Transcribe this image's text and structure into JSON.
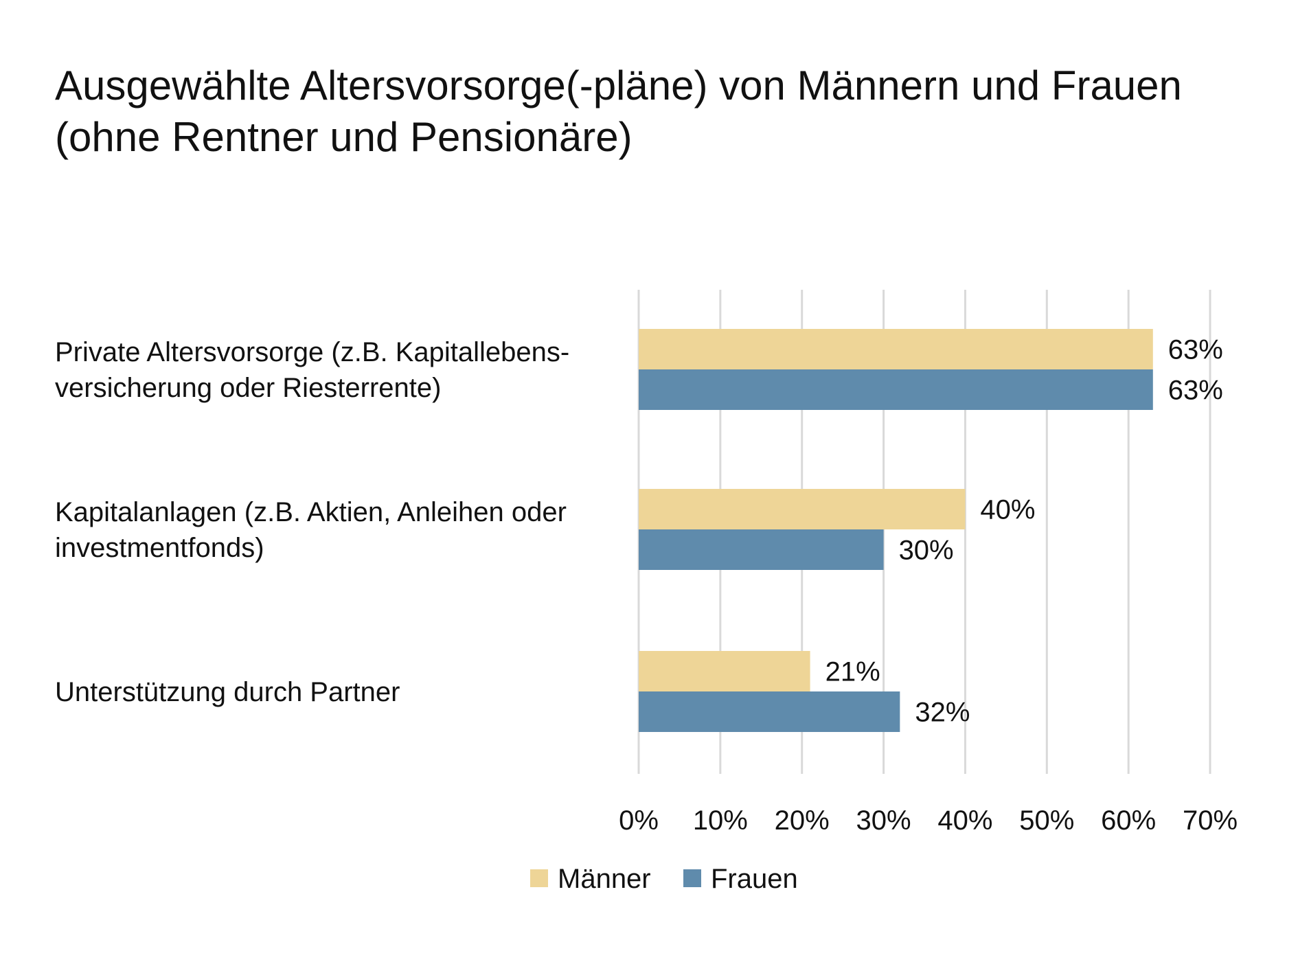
{
  "chart_data": {
    "type": "bar",
    "orientation": "horizontal",
    "title": [
      "Ausgewählte Altersvorsorge(-pläne) von Männern und Frauen",
      "(ohne Rentner und Pensionäre)"
    ],
    "categories": [
      [
        "Private Altersvorsorge (z.B. Kapitallebens-",
        "versicherung oder Riesterrente)"
      ],
      [
        "Kapitalanlagen (z.B. Aktien, Anleihen oder",
        "investmentfonds)"
      ],
      [
        "Unterstützung durch Partner"
      ]
    ],
    "series": [
      {
        "name": "Männer",
        "values": [
          63,
          40,
          21
        ],
        "labels": [
          "63%",
          "40%",
          "21%"
        ],
        "color": "#EED597"
      },
      {
        "name": "Frauen",
        "values": [
          63,
          30,
          32
        ],
        "labels": [
          "63%",
          "30%",
          "32%"
        ],
        "color": "#5F8BAC"
      }
    ],
    "xlim": [
      0,
      70
    ],
    "xticks": [
      0,
      10,
      20,
      30,
      40,
      50,
      60,
      70
    ],
    "xtick_labels": [
      "0%",
      "10%",
      "20%",
      "30%",
      "40%",
      "50%",
      "60%",
      "70%"
    ],
    "grid": true,
    "gridline_color": "#D9D9D9",
    "legend_position": "bottom"
  }
}
